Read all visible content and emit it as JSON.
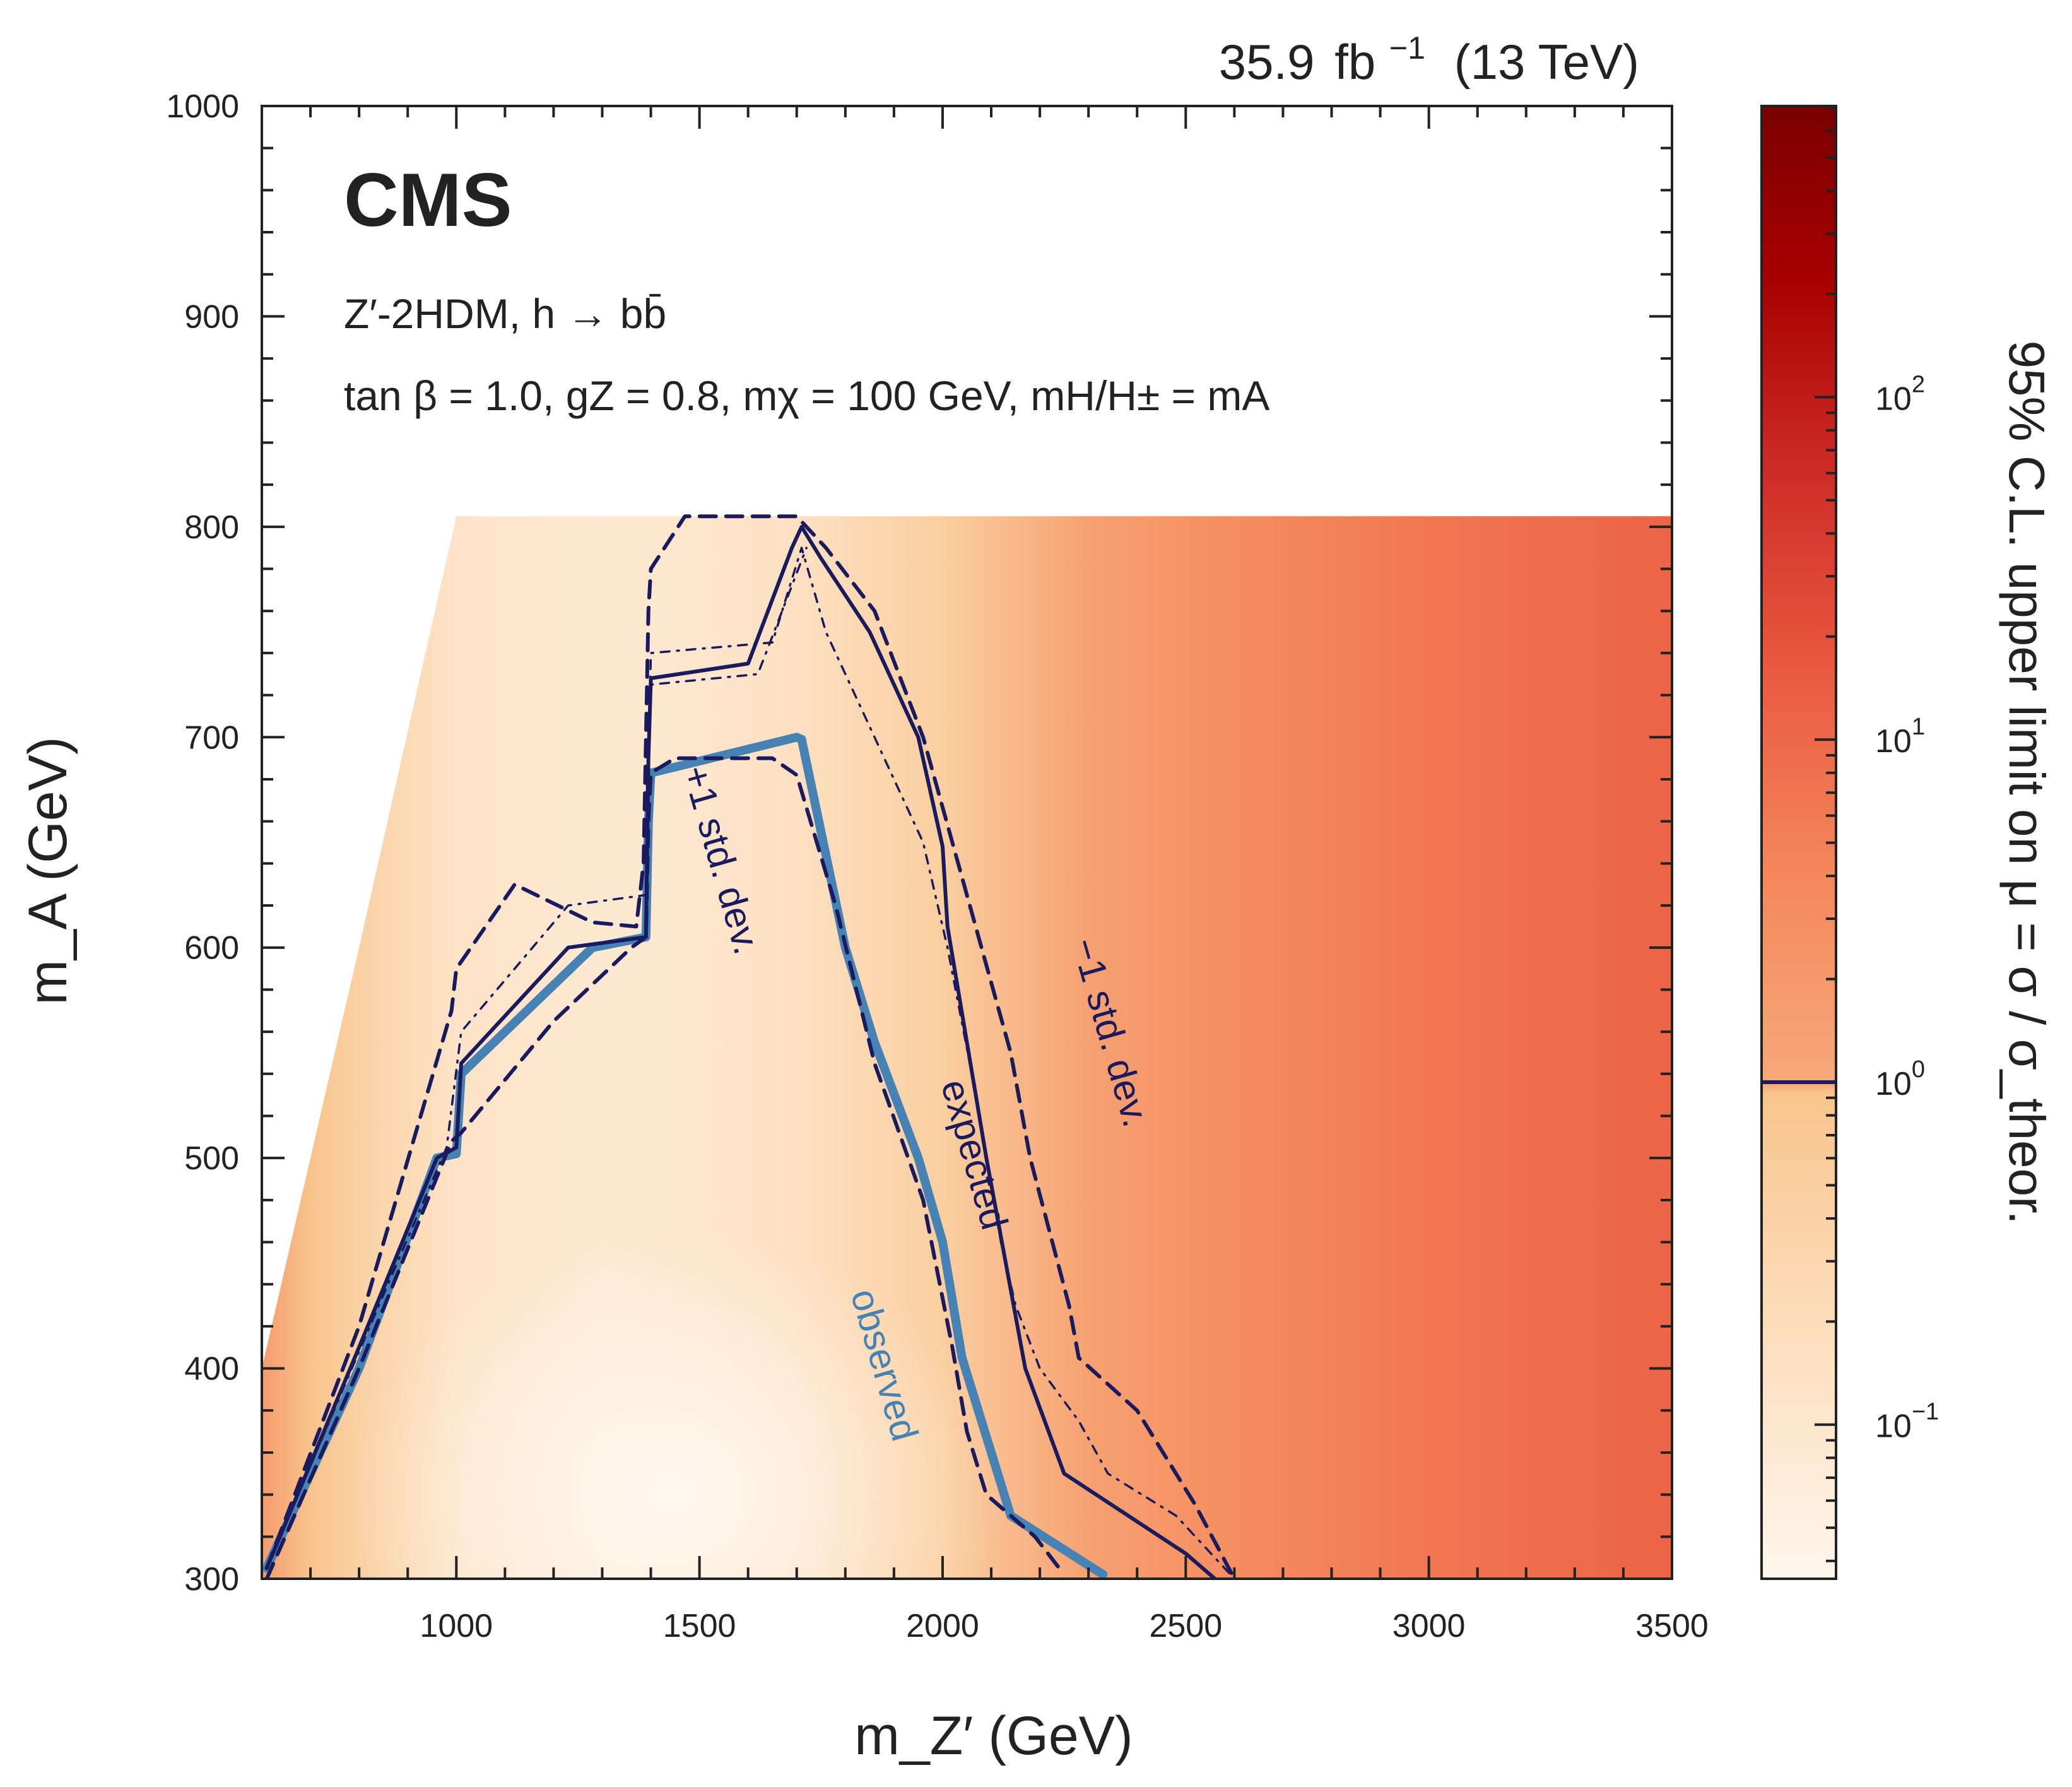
{
  "header": {
    "lumi": "35.9",
    "lumi_unit": "fb",
    "lumi_exp": "−1",
    "energy": "(13 TeV)",
    "experiment": "CMS"
  },
  "model": {
    "line1": "Z′-2HDM, h → bb̄",
    "line2": "tan β = 1.0, gZ = 0.8, mχ = 100 GeV, mH/H± = mA"
  },
  "chart_data": {
    "type": "heatmap",
    "title": "",
    "xlabel": "m_Z′ (GeV)",
    "ylabel": "m_A (GeV)",
    "zlabel": "95% C.L. upper limit on μ = σ / σ_theor.",
    "xlim": [
      600,
      3500
    ],
    "ylim": [
      300,
      1000
    ],
    "zlim_log10": [
      -1.45,
      2.85
    ],
    "x_ticks": [
      1000,
      1500,
      2000,
      2500,
      3000,
      3500
    ],
    "y_ticks": [
      300,
      400,
      500,
      600,
      700,
      800,
      900,
      1000
    ],
    "z_ticks": [
      {
        "value": 0.1,
        "label": "10",
        "exp": "−1"
      },
      {
        "value": 1,
        "label": "10",
        "exp": "0"
      },
      {
        "value": 10,
        "label": "10",
        "exp": "1"
      },
      {
        "value": 100,
        "label": "10",
        "exp": "2"
      }
    ],
    "scan_region": {
      "ymax": 805,
      "diagonal_lower_edge": [
        [
          600,
          400
        ],
        [
          800,
          600
        ],
        [
          1000,
          805
        ]
      ]
    },
    "heat_profile_log10mu": [
      [
        600,
        0.25
      ],
      [
        700,
        0.0
      ],
      [
        800,
        -0.3
      ],
      [
        1000,
        -0.85
      ],
      [
        1300,
        -1.05
      ],
      [
        1500,
        -0.95
      ],
      [
        1700,
        -0.75
      ],
      [
        2000,
        -0.25
      ],
      [
        2300,
        0.15
      ],
      [
        2600,
        0.5
      ],
      [
        3000,
        0.8
      ],
      [
        3500,
        1.05
      ]
    ],
    "contours": [
      {
        "name": "observed",
        "style": "thick",
        "color": "#4682b4",
        "x": [
          610,
          800,
          960,
          1000,
          1010,
          1280,
          1390,
          1395,
          1400,
          1700,
          1710,
          1800,
          1860,
          1950,
          2000,
          2040,
          2140,
          2330
        ],
        "y": [
          305,
          400,
          500,
          502,
          540,
          600,
          605,
          660,
          683,
          700,
          699,
          600,
          555,
          500,
          460,
          405,
          330,
          302
        ]
      },
      {
        "name": "expected",
        "style": "solid",
        "color": "#1a1a5e",
        "x": [
          610,
          800,
          960,
          1000,
          1010,
          1230,
          1390,
          1395,
          1400,
          1600,
          1690,
          1710,
          1750,
          1850,
          1950,
          2000,
          2010,
          2090,
          2170,
          2250,
          2500,
          2560
        ],
        "y": [
          305,
          410,
          500,
          505,
          545,
          600,
          605,
          690,
          728,
          735,
          790,
          800,
          785,
          750,
          700,
          648,
          610,
          500,
          400,
          350,
          312,
          300
        ]
      },
      {
        "name": "+1 std. dev.",
        "style": "dashed",
        "color": "#1a1a5e",
        "x": [
          610,
          800,
          990,
          1010,
          1200,
          1360,
          1390,
          1395,
          1400,
          1450,
          1650,
          1700,
          1780,
          1860,
          1960,
          2020,
          2050,
          2090,
          2190,
          2240
        ],
        "y": [
          300,
          400,
          508,
          512,
          565,
          600,
          605,
          660,
          683,
          690,
          690,
          682,
          620,
          545,
          480,
          410,
          370,
          340,
          320,
          305
        ]
      },
      {
        "name": "−1 std. dev.",
        "style": "dashed",
        "color": "#1a1a5e",
        "x": [
          610,
          800,
          990,
          1000,
          1120,
          1280,
          1370,
          1385,
          1395,
          1400,
          1470,
          1700,
          1760,
          1860,
          1960,
          2020,
          2080,
          2140,
          2180,
          2260,
          2280,
          2400,
          2520,
          2600,
          2720
        ],
        "y": [
          305,
          420,
          570,
          590,
          630,
          612,
          610,
          640,
          760,
          780,
          805,
          805,
          790,
          760,
          700,
          650,
          600,
          550,
          500,
          430,
          405,
          380,
          335,
          300,
          290
        ]
      },
      {
        "name": "inner-dotted",
        "style": "dotted",
        "color": "#1a1a5e",
        "x": [
          610,
          800,
          980,
          1010,
          1230,
          1390,
          1400,
          1650,
          1710,
          1760,
          1860,
          1960,
          2010,
          2060,
          2120,
          2150,
          2200,
          2280,
          2340,
          2480,
          2560,
          2600
        ],
        "y": [
          305,
          408,
          505,
          560,
          620,
          625,
          740,
          745,
          790,
          750,
          700,
          650,
          600,
          540,
          460,
          430,
          400,
          375,
          350,
          330,
          310,
          300
        ]
      },
      {
        "name": "inner-dotted-2",
        "style": "dotted",
        "color": "#1a1a5e",
        "x": [
          1400,
          1620,
          1720
        ],
        "y": [
          725,
          730,
          790
        ]
      }
    ],
    "curve_labels": [
      {
        "text": "+1 std. dev.",
        "x": 1520,
        "y": 640,
        "angle": 74,
        "color": "#1a1a5e"
      },
      {
        "text": "expected",
        "x": 2040,
        "y": 500,
        "angle": 74,
        "color": "#1a1a5e"
      },
      {
        "text": "−1 std. dev.",
        "x": 2320,
        "y": 558,
        "angle": 74,
        "color": "#1a1a5e"
      },
      {
        "text": "observed",
        "x": 1855,
        "y": 400,
        "angle": 74,
        "color": "#4682b4"
      }
    ],
    "colorbar_marker": {
      "value": 1,
      "color": "#1a1a5e"
    }
  },
  "colors": {
    "axis": "#222222",
    "expected": "#1a1a5e",
    "observed": "#4682b4",
    "heat_low": "#fff6ec",
    "heat_mid": "#f8c48c",
    "heat_high": "#7d0000"
  }
}
